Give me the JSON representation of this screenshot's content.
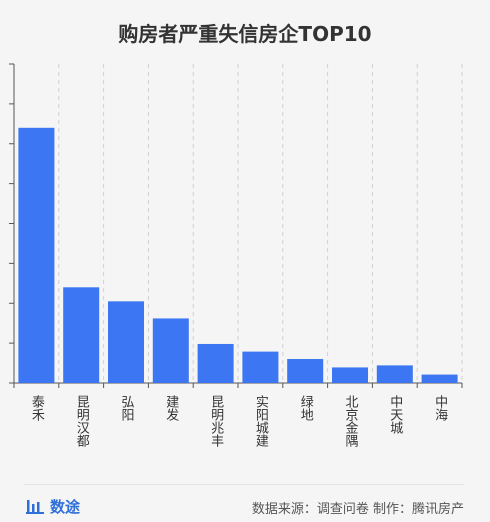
{
  "brand": {
    "name": "数途",
    "icon": "bar-chart-icon",
    "color": "#2f6fd8"
  },
  "footer": {
    "source": "数据来源：调查问卷  制作：腾讯房产"
  },
  "colors": {
    "bar": "#3c76f2",
    "axis": "#555555",
    "grid": "#d0d0d0",
    "text": "#333333"
  },
  "chart_data": {
    "type": "bar",
    "title": "购房者严重失信房企TOP10",
    "xlabel": "",
    "ylabel": "",
    "categories": [
      "泰禾",
      "昆明汉都",
      "弘阳",
      "建发",
      "昆明兆丰",
      "实阳城建",
      "绿地",
      "北京金隅",
      "中天城",
      "中海"
    ],
    "values": [
      100,
      37.5,
      32,
      25.3,
      15.3,
      12.3,
      9.4,
      6.1,
      6.9,
      3.3
    ],
    "ylim": [
      0,
      125
    ],
    "grid": "vertical-dashed",
    "legend": "none",
    "tick_labels_y": false
  }
}
